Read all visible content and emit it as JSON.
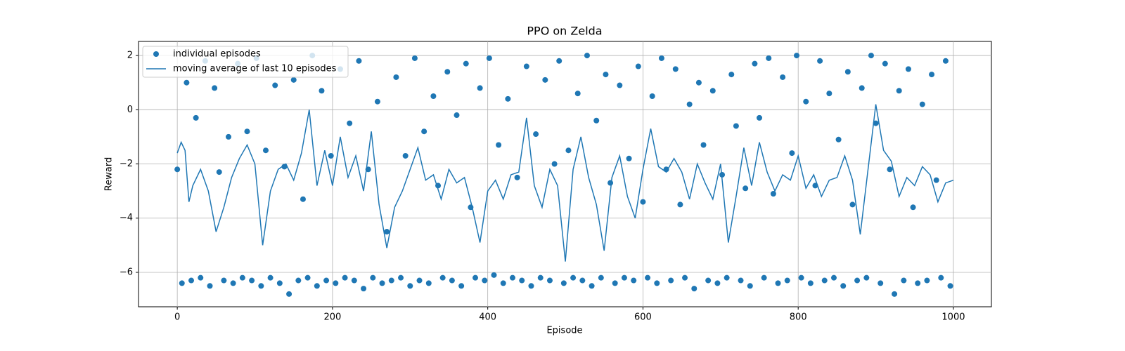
{
  "chart_data": {
    "type": "scatter",
    "title": "PPO on Zelda",
    "x_label": "Episode",
    "y_label": "Reward",
    "xlim": [
      -49.95,
      1048.95
    ],
    "ylim": [
      -7.27,
      2.52
    ],
    "xticks": [
      0,
      200,
      400,
      600,
      800,
      1000
    ],
    "yticks": [
      {
        "value": -6,
        "label": "−6"
      },
      {
        "value": -4,
        "label": "−4"
      },
      {
        "value": -2,
        "label": "−2"
      },
      0,
      2
    ],
    "grid": true,
    "legend": "upper left",
    "series": [
      {
        "name": "individual episodes",
        "type": "scatter",
        "color": "#1f77b4",
        "x": [
          0,
          6,
          12,
          18,
          24,
          30,
          36,
          42,
          48,
          54,
          60,
          66,
          72,
          78,
          84,
          90,
          96,
          102,
          108,
          114,
          120,
          126,
          132,
          138,
          144,
          150,
          156,
          162,
          168,
          174,
          180,
          186,
          192,
          198,
          204,
          210,
          216,
          222,
          228,
          234,
          240,
          246,
          252,
          258,
          264,
          270,
          276,
          282,
          288,
          294,
          300,
          306,
          312,
          318,
          324,
          330,
          336,
          342,
          348,
          354,
          360,
          366,
          372,
          378,
          384,
          390,
          396,
          402,
          408,
          414,
          420,
          426,
          432,
          438,
          444,
          450,
          456,
          462,
          468,
          474,
          480,
          486,
          492,
          498,
          504,
          510,
          516,
          522,
          528,
          534,
          540,
          546,
          552,
          558,
          564,
          570,
          576,
          582,
          588,
          594,
          600,
          606,
          612,
          618,
          624,
          630,
          636,
          642,
          648,
          654,
          660,
          666,
          672,
          678,
          684,
          690,
          696,
          702,
          708,
          714,
          720,
          726,
          732,
          738,
          744,
          750,
          756,
          762,
          768,
          774,
          780,
          786,
          792,
          798,
          804,
          810,
          816,
          822,
          828,
          834,
          840,
          846,
          852,
          858,
          864,
          870,
          876,
          882,
          888,
          894,
          900,
          906,
          912,
          918,
          924,
          930,
          936,
          942,
          948,
          954,
          960,
          966,
          972,
          978,
          984,
          990,
          996
        ],
        "values": [
          -2.2,
          -6.4,
          1.0,
          -6.3,
          -0.3,
          -6.2,
          1.8,
          -6.5,
          0.8,
          -2.3,
          -6.3,
          -1.0,
          -6.4,
          1.7,
          -6.2,
          -0.8,
          -6.3,
          1.9,
          -6.5,
          -1.5,
          -6.2,
          0.9,
          -6.4,
          -2.1,
          -6.8,
          1.1,
          -6.3,
          -3.3,
          -6.2,
          2.0,
          -6.5,
          0.7,
          -6.3,
          -1.7,
          -6.4,
          1.5,
          -6.2,
          -0.5,
          -6.3,
          1.8,
          -6.6,
          -2.2,
          -6.2,
          0.3,
          -6.4,
          -4.5,
          -6.3,
          1.2,
          -6.2,
          -1.7,
          -6.5,
          1.9,
          -6.3,
          -0.8,
          -6.4,
          0.5,
          -2.8,
          -6.2,
          1.4,
          -6.3,
          -0.2,
          -6.5,
          1.7,
          -3.6,
          -6.2,
          0.8,
          -6.3,
          1.9,
          -6.1,
          -1.3,
          -6.4,
          0.4,
          -6.2,
          -2.5,
          -6.3,
          1.6,
          -6.5,
          -0.9,
          -6.2,
          1.1,
          -6.3,
          -2.0,
          1.8,
          -6.4,
          -1.5,
          -6.2,
          0.6,
          -6.3,
          2.0,
          -6.5,
          -0.4,
          -6.2,
          1.3,
          -2.7,
          -6.4,
          0.9,
          -6.2,
          -1.8,
          -6.3,
          1.6,
          -3.4,
          -6.2,
          0.5,
          -6.4,
          1.9,
          -2.2,
          -6.3,
          1.5,
          -3.5,
          -6.2,
          0.2,
          -6.6,
          1.0,
          -1.3,
          -6.3,
          0.7,
          -6.4,
          -2.4,
          -6.2,
          1.3,
          -0.6,
          -6.3,
          -2.9,
          -6.5,
          1.7,
          -0.3,
          -6.2,
          1.9,
          -3.1,
          -6.4,
          1.2,
          -6.3,
          -1.6,
          2.0,
          -6.2,
          0.3,
          -6.4,
          -2.8,
          1.8,
          -6.3,
          0.6,
          -6.2,
          -1.1,
          -6.5,
          1.4,
          -3.5,
          -6.3,
          0.8,
          -6.2,
          2.0,
          -0.5,
          -6.4,
          1.7,
          -2.2,
          -6.8,
          0.7,
          -6.3,
          1.5,
          -3.6,
          -6.4,
          0.2,
          -6.3,
          1.3,
          -2.6,
          -6.2,
          1.8,
          -6.5
        ]
      },
      {
        "name": "moving average of last 10 episodes",
        "type": "line",
        "color": "#1f77b4",
        "x": [
          0,
          5,
          10,
          15,
          20,
          30,
          40,
          50,
          60,
          70,
          80,
          90,
          100,
          110,
          120,
          130,
          140,
          150,
          160,
          170,
          180,
          190,
          200,
          210,
          220,
          230,
          240,
          250,
          260,
          270,
          280,
          290,
          300,
          310,
          320,
          330,
          340,
          350,
          360,
          370,
          380,
          390,
          400,
          410,
          420,
          430,
          440,
          450,
          460,
          470,
          480,
          490,
          500,
          510,
          520,
          530,
          540,
          550,
          560,
          570,
          580,
          590,
          600,
          610,
          620,
          630,
          640,
          650,
          660,
          670,
          680,
          690,
          700,
          710,
          720,
          730,
          740,
          750,
          760,
          770,
          780,
          790,
          800,
          810,
          820,
          830,
          840,
          850,
          860,
          870,
          880,
          890,
          900,
          910,
          920,
          930,
          940,
          950,
          960,
          970,
          980,
          990,
          1000
        ],
        "values": [
          -1.6,
          -1.2,
          -1.5,
          -3.4,
          -2.8,
          -2.2,
          -3.0,
          -4.5,
          -3.6,
          -2.5,
          -1.8,
          -1.3,
          -2.0,
          -5.0,
          -3.0,
          -2.2,
          -2.0,
          -2.6,
          -1.6,
          0.0,
          -2.8,
          -1.5,
          -2.8,
          -1.0,
          -2.5,
          -1.7,
          -3.0,
          -0.8,
          -3.5,
          -5.1,
          -3.6,
          -3.0,
          -2.2,
          -1.4,
          -2.6,
          -2.4,
          -3.3,
          -2.2,
          -2.7,
          -2.5,
          -3.6,
          -4.9,
          -3.0,
          -2.6,
          -3.3,
          -2.4,
          -2.3,
          -0.3,
          -2.8,
          -3.6,
          -2.2,
          -2.8,
          -5.6,
          -2.2,
          -1.0,
          -2.5,
          -3.5,
          -5.2,
          -2.5,
          -1.7,
          -3.2,
          -4.0,
          -2.2,
          -0.7,
          -2.1,
          -2.3,
          -1.8,
          -2.3,
          -3.3,
          -2.0,
          -2.7,
          -3.3,
          -2.0,
          -4.9,
          -3.2,
          -1.4,
          -2.8,
          -1.2,
          -2.3,
          -3.0,
          -2.4,
          -2.6,
          -1.7,
          -2.9,
          -2.4,
          -3.2,
          -2.6,
          -2.5,
          -1.7,
          -2.6,
          -4.6,
          -2.2,
          0.2,
          -1.5,
          -1.9,
          -3.2,
          -2.5,
          -2.8,
          -2.1,
          -2.4,
          -3.4,
          -2.7,
          -2.6
        ]
      }
    ]
  }
}
